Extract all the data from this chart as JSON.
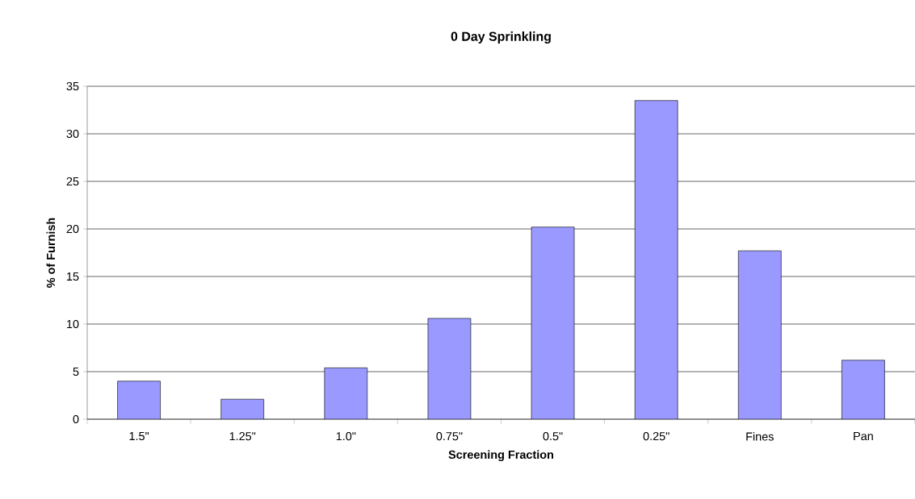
{
  "chart_data": {
    "type": "bar",
    "title": "0 Day Sprinkling",
    "xlabel": "Screening Fraction",
    "ylabel": "% of Furnish",
    "categories": [
      "1.5\"",
      "1.25\"",
      "1.0\"",
      "0.75\"",
      "0.5\"",
      "0.25\"",
      "Fines",
      "Pan"
    ],
    "values": [
      4.0,
      2.1,
      5.4,
      10.6,
      20.2,
      33.5,
      17.7,
      6.2
    ],
    "color": "#9999ff",
    "ylim": [
      0,
      35
    ],
    "yticks": [
      0,
      5,
      10,
      15,
      20,
      25,
      30,
      35
    ],
    "grid": "y"
  }
}
